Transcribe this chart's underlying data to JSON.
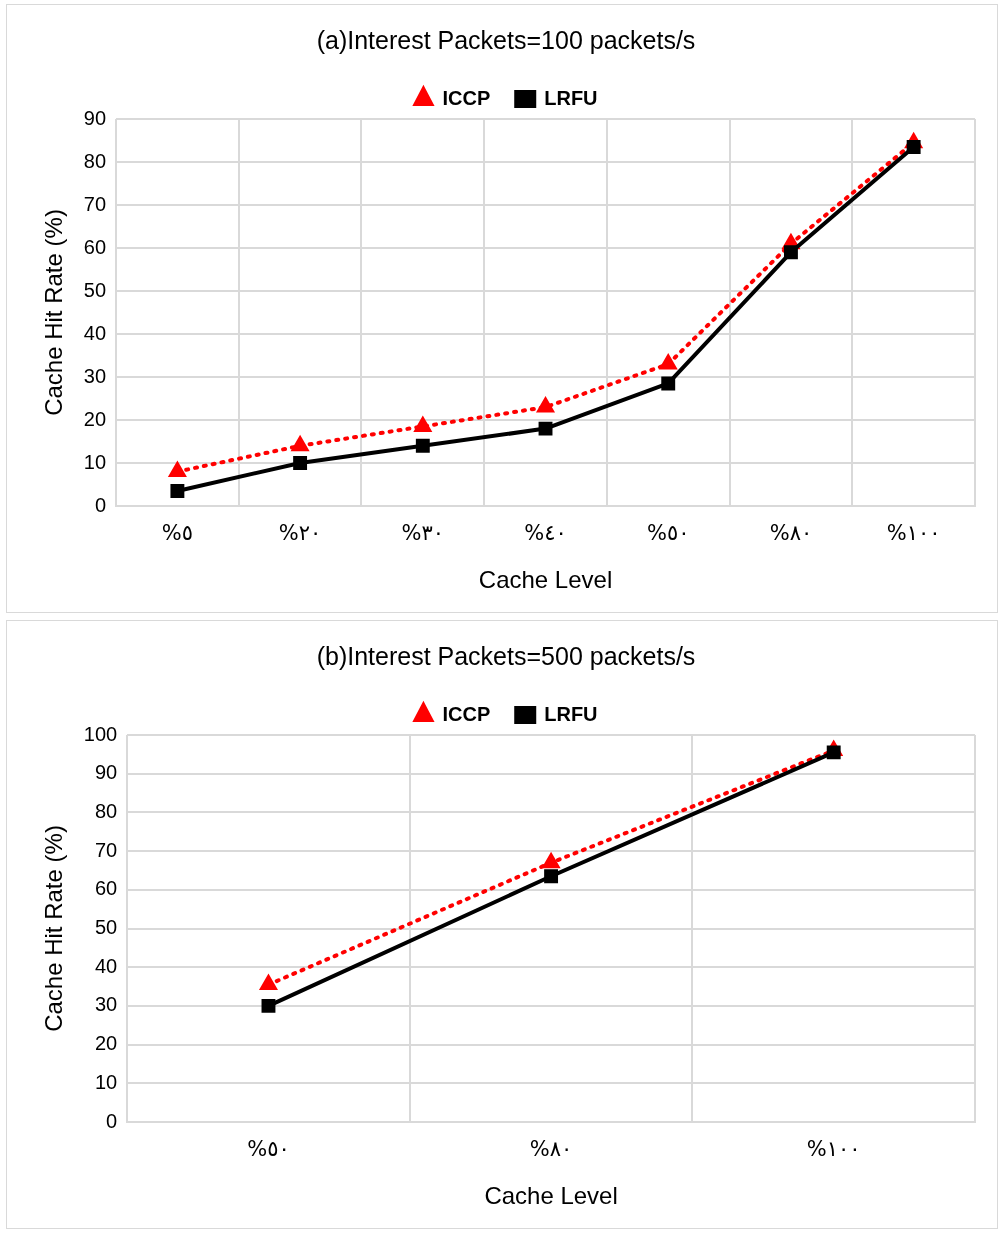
{
  "chart_data": [
    {
      "type": "line",
      "title": "(a)Interest Packets=100 packets/s",
      "xlabel": "Cache Level",
      "ylabel": "Cache Hit Rate (%)",
      "categories": [
        "%٥",
        "%٢٠",
        "%٣٠",
        "%٤٠",
        "%٥٠",
        "%٨٠",
        "%١٠٠"
      ],
      "series": [
        {
          "name": "ICCP",
          "color": "#ff0000",
          "values": [
            8,
            14,
            18.5,
            23,
            33,
            61,
            84.5
          ],
          "marker": "triangle",
          "line_style": "dotted"
        },
        {
          "name": "LRFU",
          "color": "#000000",
          "values": [
            3.5,
            10,
            14,
            18,
            28.5,
            59,
            83.5
          ],
          "marker": "square",
          "line_style": "solid"
        }
      ],
      "ylim": [
        0,
        90
      ],
      "yticks": [
        0,
        10,
        20,
        30,
        40,
        50,
        60,
        70,
        80,
        90
      ],
      "grid": true,
      "legend": "top"
    },
    {
      "type": "line",
      "title": "(b)Interest Packets=500 packets/s",
      "xlabel": "Cache Level",
      "ylabel": "Cache Hit Rate (%)",
      "categories": [
        "%٥٠",
        "%٨٠",
        "%١٠٠"
      ],
      "series": [
        {
          "name": "ICCP",
          "color": "#ff0000",
          "values": [
            35.5,
            67,
            96
          ],
          "marker": "triangle",
          "line_style": "dotted"
        },
        {
          "name": "LRFU",
          "color": "#000000",
          "values": [
            30,
            63.5,
            95.5
          ],
          "marker": "square",
          "line_style": "solid"
        }
      ],
      "ylim": [
        0,
        100
      ],
      "yticks": [
        0,
        10,
        20,
        30,
        40,
        50,
        60,
        70,
        80,
        90,
        100
      ],
      "grid": true,
      "legend": "top"
    }
  ]
}
